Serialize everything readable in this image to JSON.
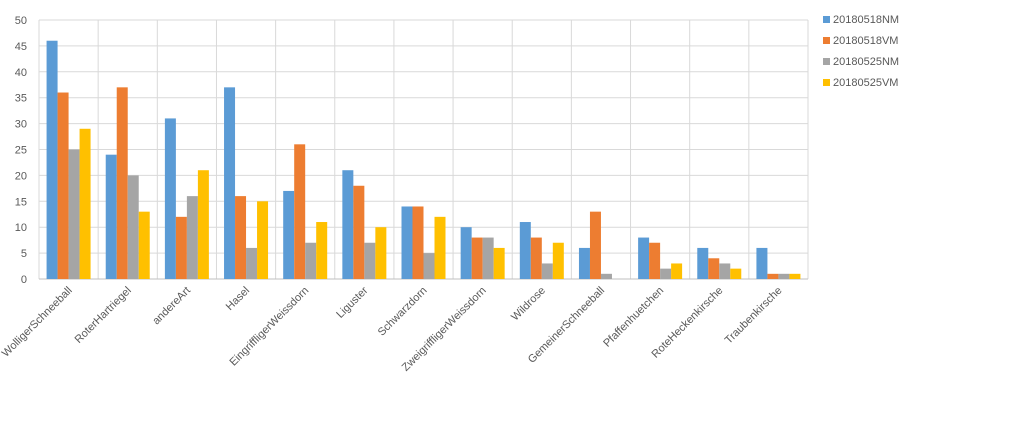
{
  "chart_data": {
    "type": "bar",
    "categories": [
      "WolligerSchneeball",
      "RoterHartriegel",
      "andereArt",
      "Hasel",
      "EingriffligerWeissdorn",
      "Liguster",
      "Schwarzdorn",
      "ZweigriffligerWeissdorn",
      "Wildrose",
      "GemeinerSchneeball",
      "Pfaffenhuetchen",
      "RoteHeckenkirsche",
      "Traubenkirsche"
    ],
    "series": [
      {
        "name": "20180518NM",
        "color": "#5B9BD5",
        "values": [
          46,
          24,
          31,
          37,
          17,
          21,
          14,
          10,
          11,
          6,
          8,
          6,
          6
        ]
      },
      {
        "name": "20180518VM",
        "color": "#ED7D31",
        "values": [
          36,
          37,
          12,
          16,
          26,
          18,
          14,
          8,
          8,
          13,
          7,
          4,
          1
        ]
      },
      {
        "name": "20180525NM",
        "color": "#A5A5A5",
        "values": [
          25,
          20,
          16,
          6,
          7,
          7,
          5,
          8,
          3,
          1,
          2,
          3,
          1
        ]
      },
      {
        "name": "20180525VM",
        "color": "#FFC000",
        "values": [
          29,
          13,
          21,
          15,
          11,
          10,
          12,
          6,
          7,
          0,
          3,
          2,
          1
        ]
      }
    ],
    "y_ticks": [
      0,
      5,
      10,
      15,
      20,
      25,
      30,
      35,
      40,
      45,
      50
    ],
    "ylim": [
      0,
      50
    ],
    "grid": true,
    "legend_position": "right",
    "title": "",
    "xlabel": "",
    "ylabel": ""
  }
}
